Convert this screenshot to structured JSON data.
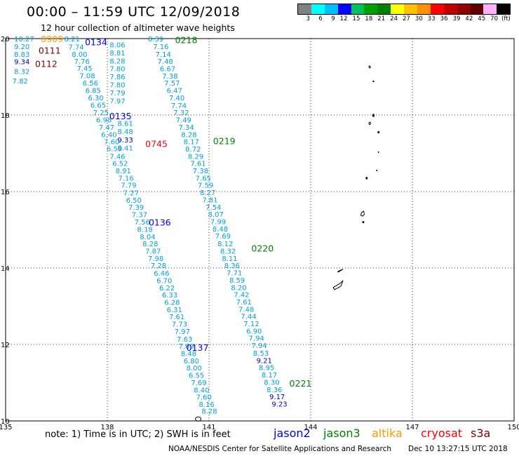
{
  "header": {
    "title": "00:00 – 11:59 UTC 12/09/2018",
    "subtitle": "12 hour collection of altimeter wave heights"
  },
  "legend": {
    "colors": [
      "#808080",
      "#00ffff",
      "#00bfff",
      "#0000ff",
      "#00c060",
      "#00a000",
      "#008000",
      "#ffff00",
      "#ffc000",
      "#ff9000",
      "#ff0000",
      "#c00000",
      "#900000",
      "#600000",
      "#ffb0ff",
      "#000000"
    ],
    "ticks": [
      "3",
      "6",
      "9",
      "12",
      "15",
      "18",
      "21",
      "24",
      "27",
      "30",
      "33",
      "36",
      "39",
      "42",
      "45",
      "70",
      "(ft)"
    ]
  },
  "axes": {
    "lon_labels": [
      "135",
      "138",
      "141",
      "144",
      "147",
      "150"
    ],
    "lat_labels": [
      "20",
      "18",
      "16",
      "14",
      "12",
      "10"
    ]
  },
  "colors": {
    "swh": "#00a0e0",
    "swh_high": "#0000c0",
    "jason2": "#0000ff",
    "jason3": "#008000",
    "altika": "#ff9900",
    "cryosat": "#ff0000",
    "s3a": "#800000"
  },
  "passes": [
    {
      "label": "0909",
      "color": "#ff9900",
      "lon": 136.04,
      "lat": 20.0
    },
    {
      "label": "0134",
      "color": "#0000ff",
      "lon": 137.34,
      "lat": 19.92
    },
    {
      "label": "0111",
      "color": "#800000",
      "lon": 135.97,
      "lat": 19.7
    },
    {
      "label": "0112",
      "color": "#800000",
      "lon": 135.87,
      "lat": 19.35
    },
    {
      "label": "0218",
      "color": "#008000",
      "lon": 140.0,
      "lat": 19.97
    },
    {
      "label": "0135",
      "color": "#0000ff",
      "lon": 138.06,
      "lat": 17.98
    },
    {
      "label": "0745",
      "color": "#ff0000",
      "lon": 139.12,
      "lat": 17.26
    },
    {
      "label": "0219",
      "color": "#008000",
      "lon": 141.12,
      "lat": 17.33
    },
    {
      "label": "0136",
      "color": "#0000ff",
      "lon": 139.22,
      "lat": 15.2
    },
    {
      "label": "0220",
      "color": "#008000",
      "lon": 142.25,
      "lat": 14.52
    },
    {
      "label": "0137",
      "color": "#0000ff",
      "lon": 140.33,
      "lat": 11.93
    },
    {
      "label": "0221",
      "color": "#008000",
      "lon": 143.37,
      "lat": 10.99
    }
  ],
  "tracks": [
    {
      "name": "west-top",
      "values": [
        {
          "lon": 135.25,
          "lat": 20.0,
          "v": "10.27"
        },
        {
          "lon": 135.25,
          "lat": 19.8,
          "v": "9.20"
        },
        {
          "lon": 135.25,
          "lat": 19.6,
          "v": "8.83"
        },
        {
          "lon": 135.25,
          "lat": 19.4,
          "v": "9.34",
          "high": true
        },
        {
          "lon": 135.25,
          "lat": 19.15,
          "v": "8.32"
        },
        {
          "lon": 135.2,
          "lat": 18.9,
          "v": "7.82"
        },
        {
          "lon": 136.73,
          "lat": 20.0,
          "v": "8.21"
        },
        {
          "lon": 136.85,
          "lat": 19.79,
          "v": "7.74"
        },
        {
          "lon": 136.95,
          "lat": 19.6,
          "v": "8.00"
        },
        {
          "lon": 137.02,
          "lat": 19.41,
          "v": "7.76"
        },
        {
          "lon": 137.1,
          "lat": 19.23,
          "v": "7.45"
        },
        {
          "lon": 137.18,
          "lat": 19.04,
          "v": "7.08"
        },
        {
          "lon": 137.27,
          "lat": 18.84,
          "v": "6.56"
        },
        {
          "lon": 137.35,
          "lat": 18.65,
          "v": "6.85"
        },
        {
          "lon": 137.43,
          "lat": 18.46,
          "v": "6.30"
        },
        {
          "lon": 137.5,
          "lat": 18.27,
          "v": "6.65"
        },
        {
          "lon": 137.58,
          "lat": 18.07,
          "v": "7.25"
        },
        {
          "lon": 137.67,
          "lat": 17.88,
          "v": "6.98"
        },
        {
          "lon": 137.75,
          "lat": 17.69,
          "v": "7.47"
        },
        {
          "lon": 137.82,
          "lat": 17.5,
          "v": "6.40"
        },
        {
          "lon": 137.9,
          "lat": 17.31,
          "v": "7.60"
        },
        {
          "lon": 137.98,
          "lat": 17.13,
          "v": "6.59"
        },
        {
          "lon": 138.07,
          "lat": 16.93,
          "v": "7.46"
        },
        {
          "lon": 138.15,
          "lat": 16.74,
          "v": "6.52"
        },
        {
          "lon": 138.24,
          "lat": 16.55,
          "v": "8.91"
        },
        {
          "lon": 138.32,
          "lat": 16.36,
          "v": "7.16"
        },
        {
          "lon": 138.4,
          "lat": 16.17,
          "v": "7.79"
        },
        {
          "lon": 138.47,
          "lat": 15.97,
          "v": "7.27"
        },
        {
          "lon": 138.55,
          "lat": 15.78,
          "v": "6.50"
        },
        {
          "lon": 138.62,
          "lat": 15.6,
          "v": "7.39"
        },
        {
          "lon": 138.72,
          "lat": 15.4,
          "v": "7.37"
        },
        {
          "lon": 138.8,
          "lat": 15.21,
          "v": "7.56"
        },
        {
          "lon": 138.88,
          "lat": 15.02,
          "v": "8.18"
        },
        {
          "lon": 138.96,
          "lat": 14.83,
          "v": "8.04"
        },
        {
          "lon": 139.04,
          "lat": 14.64,
          "v": "8.28"
        },
        {
          "lon": 139.12,
          "lat": 14.45,
          "v": "7.87"
        },
        {
          "lon": 139.2,
          "lat": 14.26,
          "v": "7.98"
        },
        {
          "lon": 139.28,
          "lat": 14.07,
          "v": "7.28"
        },
        {
          "lon": 139.37,
          "lat": 13.87,
          "v": "6.46"
        },
        {
          "lon": 139.45,
          "lat": 13.68,
          "v": "6.70"
        },
        {
          "lon": 139.53,
          "lat": 13.49,
          "v": "6.22"
        },
        {
          "lon": 139.61,
          "lat": 13.3,
          "v": "6.33"
        },
        {
          "lon": 139.68,
          "lat": 13.11,
          "v": "6.28"
        },
        {
          "lon": 139.75,
          "lat": 12.92,
          "v": "6.31"
        },
        {
          "lon": 139.82,
          "lat": 12.73,
          "v": "7.61"
        },
        {
          "lon": 139.9,
          "lat": 12.54,
          "v": "7.73"
        },
        {
          "lon": 139.98,
          "lat": 12.35,
          "v": "7.97"
        },
        {
          "lon": 140.05,
          "lat": 12.15,
          "v": "7.63"
        },
        {
          "lon": 140.1,
          "lat": 11.96,
          "v": "7.69"
        },
        {
          "lon": 140.17,
          "lat": 11.77,
          "v": "8.48"
        },
        {
          "lon": 140.25,
          "lat": 11.58,
          "v": "6.80"
        },
        {
          "lon": 140.33,
          "lat": 11.39,
          "v": "8.00"
        },
        {
          "lon": 140.4,
          "lat": 11.2,
          "v": "6.55"
        },
        {
          "lon": 140.47,
          "lat": 11.01,
          "v": "7.69"
        },
        {
          "lon": 140.55,
          "lat": 10.82,
          "v": "8.40"
        },
        {
          "lon": 140.62,
          "lat": 10.63,
          "v": "7.60"
        },
        {
          "lon": 140.7,
          "lat": 10.44,
          "v": "8.16"
        },
        {
          "lon": 140.78,
          "lat": 10.27,
          "v": "8.28"
        }
      ]
    },
    {
      "name": "col-138",
      "values": [
        {
          "lon": 138.07,
          "lat": 19.84,
          "v": "8.06"
        },
        {
          "lon": 138.07,
          "lat": 19.63,
          "v": "8.81"
        },
        {
          "lon": 138.07,
          "lat": 19.42,
          "v": "8.28"
        },
        {
          "lon": 138.07,
          "lat": 19.22,
          "v": "7.80"
        },
        {
          "lon": 138.07,
          "lat": 19.01,
          "v": "7.86"
        },
        {
          "lon": 138.07,
          "lat": 18.8,
          "v": "7.80"
        },
        {
          "lon": 138.07,
          "lat": 18.59,
          "v": "7.79"
        },
        {
          "lon": 138.07,
          "lat": 18.38,
          "v": "7.97"
        },
        {
          "lon": 138.3,
          "lat": 17.79,
          "v": "8.61"
        },
        {
          "lon": 138.3,
          "lat": 17.58,
          "v": "8.48"
        },
        {
          "lon": 138.3,
          "lat": 17.36,
          "v": "9.33",
          "high": true
        },
        {
          "lon": 138.3,
          "lat": 17.15,
          "v": "8.41"
        }
      ]
    },
    {
      "name": "east",
      "values": [
        {
          "lon": 139.2,
          "lat": 20.0,
          "v": "8.39"
        },
        {
          "lon": 139.35,
          "lat": 19.8,
          "v": "7.16"
        },
        {
          "lon": 139.42,
          "lat": 19.6,
          "v": "7.14"
        },
        {
          "lon": 139.48,
          "lat": 19.41,
          "v": "7.48"
        },
        {
          "lon": 139.55,
          "lat": 19.22,
          "v": "6.67"
        },
        {
          "lon": 139.62,
          "lat": 19.03,
          "v": "7.38"
        },
        {
          "lon": 139.68,
          "lat": 18.84,
          "v": "7.57"
        },
        {
          "lon": 139.75,
          "lat": 18.65,
          "v": "6.47"
        },
        {
          "lon": 139.82,
          "lat": 18.46,
          "v": "7.40"
        },
        {
          "lon": 139.88,
          "lat": 18.26,
          "v": "7.74"
        },
        {
          "lon": 139.95,
          "lat": 18.07,
          "v": "7.32"
        },
        {
          "lon": 140.02,
          "lat": 17.88,
          "v": "7.49"
        },
        {
          "lon": 140.1,
          "lat": 17.69,
          "v": "7.34"
        },
        {
          "lon": 140.18,
          "lat": 17.5,
          "v": "8.28"
        },
        {
          "lon": 140.25,
          "lat": 17.31,
          "v": "8.17"
        },
        {
          "lon": 140.3,
          "lat": 17.12,
          "v": "8.72"
        },
        {
          "lon": 140.38,
          "lat": 16.93,
          "v": "8.29"
        },
        {
          "lon": 140.45,
          "lat": 16.74,
          "v": "7.61"
        },
        {
          "lon": 140.52,
          "lat": 16.55,
          "v": "7.38"
        },
        {
          "lon": 140.6,
          "lat": 16.36,
          "v": "7.65"
        },
        {
          "lon": 140.67,
          "lat": 16.17,
          "v": "7.59"
        },
        {
          "lon": 140.73,
          "lat": 15.98,
          "v": "8.27"
        },
        {
          "lon": 140.8,
          "lat": 15.79,
          "v": "7.81"
        },
        {
          "lon": 140.9,
          "lat": 15.6,
          "v": "7.54"
        },
        {
          "lon": 140.97,
          "lat": 15.41,
          "v": "8.07"
        },
        {
          "lon": 141.04,
          "lat": 15.22,
          "v": "7.99"
        },
        {
          "lon": 141.1,
          "lat": 15.03,
          "v": "8.48"
        },
        {
          "lon": 141.18,
          "lat": 14.84,
          "v": "7.69"
        },
        {
          "lon": 141.25,
          "lat": 14.64,
          "v": "8.12"
        },
        {
          "lon": 141.33,
          "lat": 14.45,
          "v": "8.32"
        },
        {
          "lon": 141.38,
          "lat": 14.26,
          "v": "8.11"
        },
        {
          "lon": 141.45,
          "lat": 14.07,
          "v": "8.36"
        },
        {
          "lon": 141.52,
          "lat": 13.88,
          "v": "7.71"
        },
        {
          "lon": 141.6,
          "lat": 13.69,
          "v": "8.59"
        },
        {
          "lon": 141.65,
          "lat": 13.5,
          "v": "8.20"
        },
        {
          "lon": 141.73,
          "lat": 13.31,
          "v": "7.42"
        },
        {
          "lon": 141.8,
          "lat": 13.12,
          "v": "7.61"
        },
        {
          "lon": 141.87,
          "lat": 12.93,
          "v": "7.48"
        },
        {
          "lon": 141.94,
          "lat": 12.74,
          "v": "7.44"
        },
        {
          "lon": 142.02,
          "lat": 12.55,
          "v": "7.12"
        },
        {
          "lon": 142.1,
          "lat": 12.36,
          "v": "6.90"
        },
        {
          "lon": 142.17,
          "lat": 12.17,
          "v": "7.94"
        },
        {
          "lon": 142.25,
          "lat": 11.98,
          "v": "7.94"
        },
        {
          "lon": 142.3,
          "lat": 11.78,
          "v": "8.53"
        },
        {
          "lon": 142.4,
          "lat": 11.59,
          "v": "9.21",
          "high": true
        },
        {
          "lon": 142.47,
          "lat": 11.4,
          "v": "8.95"
        },
        {
          "lon": 142.55,
          "lat": 11.21,
          "v": "8.17"
        },
        {
          "lon": 142.62,
          "lat": 11.02,
          "v": "8.30"
        },
        {
          "lon": 142.7,
          "lat": 10.83,
          "v": "8.36"
        },
        {
          "lon": 142.78,
          "lat": 10.64,
          "v": "9.17",
          "high": true
        },
        {
          "lon": 142.85,
          "lat": 10.45,
          "v": "9.23",
          "high": true
        }
      ]
    }
  ],
  "note": {
    "text": "note:  1) Time is in UTC;  2) SWH is in feet"
  },
  "satellites": [
    {
      "name": "jason2",
      "color": "#0000ff"
    },
    {
      "name": "jason3",
      "color": "#008000"
    },
    {
      "name": "altika",
      "color": "#ff9900"
    },
    {
      "name": "cryosat",
      "color": "#ff0000"
    },
    {
      "name": "s3a",
      "color": "#800000"
    }
  ],
  "footer": {
    "center": "NOAA/NESDIS Center for Satellite Applications and Research",
    "stamp": "Dec 10 13:27:15 UTC 2018"
  }
}
